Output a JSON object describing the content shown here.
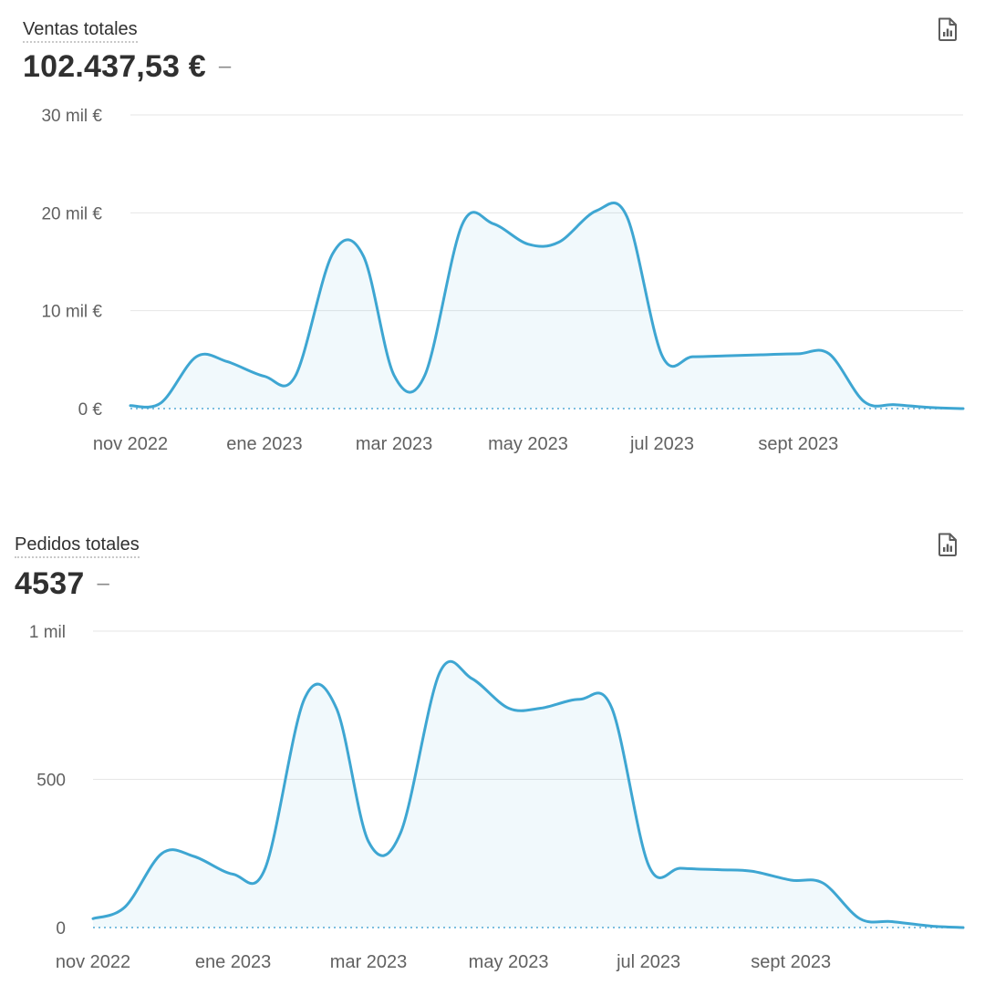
{
  "sales": {
    "title": "Ventas totales",
    "value": "102.437,53 €",
    "trend": "–",
    "report_icon": "report-document-chart-icon"
  },
  "orders": {
    "title": "Pedidos totales",
    "value": "4537",
    "trend": "–",
    "report_icon": "report-document-chart-icon"
  },
  "colors": {
    "line": "#3ea6d2",
    "grid": "#e6e6e6",
    "baseline": "#7fbfe0"
  },
  "chart_data": [
    {
      "type": "area",
      "title": "Ventas totales",
      "ylim": [
        0,
        30000
      ],
      "y_ticks": [
        "0 €",
        "10 mil €",
        "20 mil €",
        "30 mil €"
      ],
      "y_tick_values": [
        0,
        10000,
        20000,
        30000
      ],
      "x_ticks": [
        "nov 2022",
        "ene 2023",
        "mar 2023",
        "may 2023",
        "jul 2023",
        "sept 2023"
      ],
      "grid": true,
      "series": [
        {
          "x": [
            "2022-11-01",
            "2022-11-15",
            "2022-12-01",
            "2022-12-15",
            "2023-01-01",
            "2023-01-15",
            "2023-02-01",
            "2023-02-15",
            "2023-03-01",
            "2023-03-15",
            "2023-04-01",
            "2023-04-15",
            "2023-05-01",
            "2023-05-15",
            "2023-06-01",
            "2023-06-15",
            "2023-07-01",
            "2023-07-15",
            "2023-08-01",
            "2023-08-15",
            "2023-09-01",
            "2023-09-15",
            "2023-10-01",
            "2023-10-15",
            "2023-11-01",
            "2023-11-15"
          ],
          "y": [
            300,
            600,
            5300,
            4800,
            3300,
            3300,
            15800,
            15600,
            3400,
            3400,
            18800,
            18900,
            16800,
            17000,
            20200,
            19600,
            5400,
            5300,
            5400,
            5500,
            5600,
            5600,
            700,
            400,
            100,
            0
          ]
        }
      ]
    },
    {
      "type": "area",
      "title": "Pedidos totales",
      "ylim": [
        0,
        1000
      ],
      "y_ticks": [
        "0",
        "500",
        "1 mil"
      ],
      "y_tick_values": [
        0,
        500,
        1000
      ],
      "x_ticks": [
        "nov 2022",
        "ene 2023",
        "mar 2023",
        "may 2023",
        "jul 2023",
        "sept 2023"
      ],
      "grid": true,
      "series": [
        {
          "x": [
            "2022-11-01",
            "2022-11-15",
            "2022-12-01",
            "2022-12-15",
            "2023-01-01",
            "2023-01-15",
            "2023-02-01",
            "2023-02-15",
            "2023-03-01",
            "2023-03-15",
            "2023-04-01",
            "2023-04-15",
            "2023-05-01",
            "2023-05-15",
            "2023-06-01",
            "2023-06-15",
            "2023-07-01",
            "2023-07-15",
            "2023-08-01",
            "2023-08-15",
            "2023-09-01",
            "2023-09-15",
            "2023-10-01",
            "2023-10-15",
            "2023-11-01",
            "2023-11-15"
          ],
          "y": [
            30,
            70,
            250,
            240,
            180,
            200,
            770,
            740,
            290,
            320,
            860,
            840,
            740,
            740,
            770,
            740,
            210,
            200,
            195,
            190,
            160,
            150,
            30,
            20,
            5,
            0
          ]
        }
      ]
    }
  ]
}
